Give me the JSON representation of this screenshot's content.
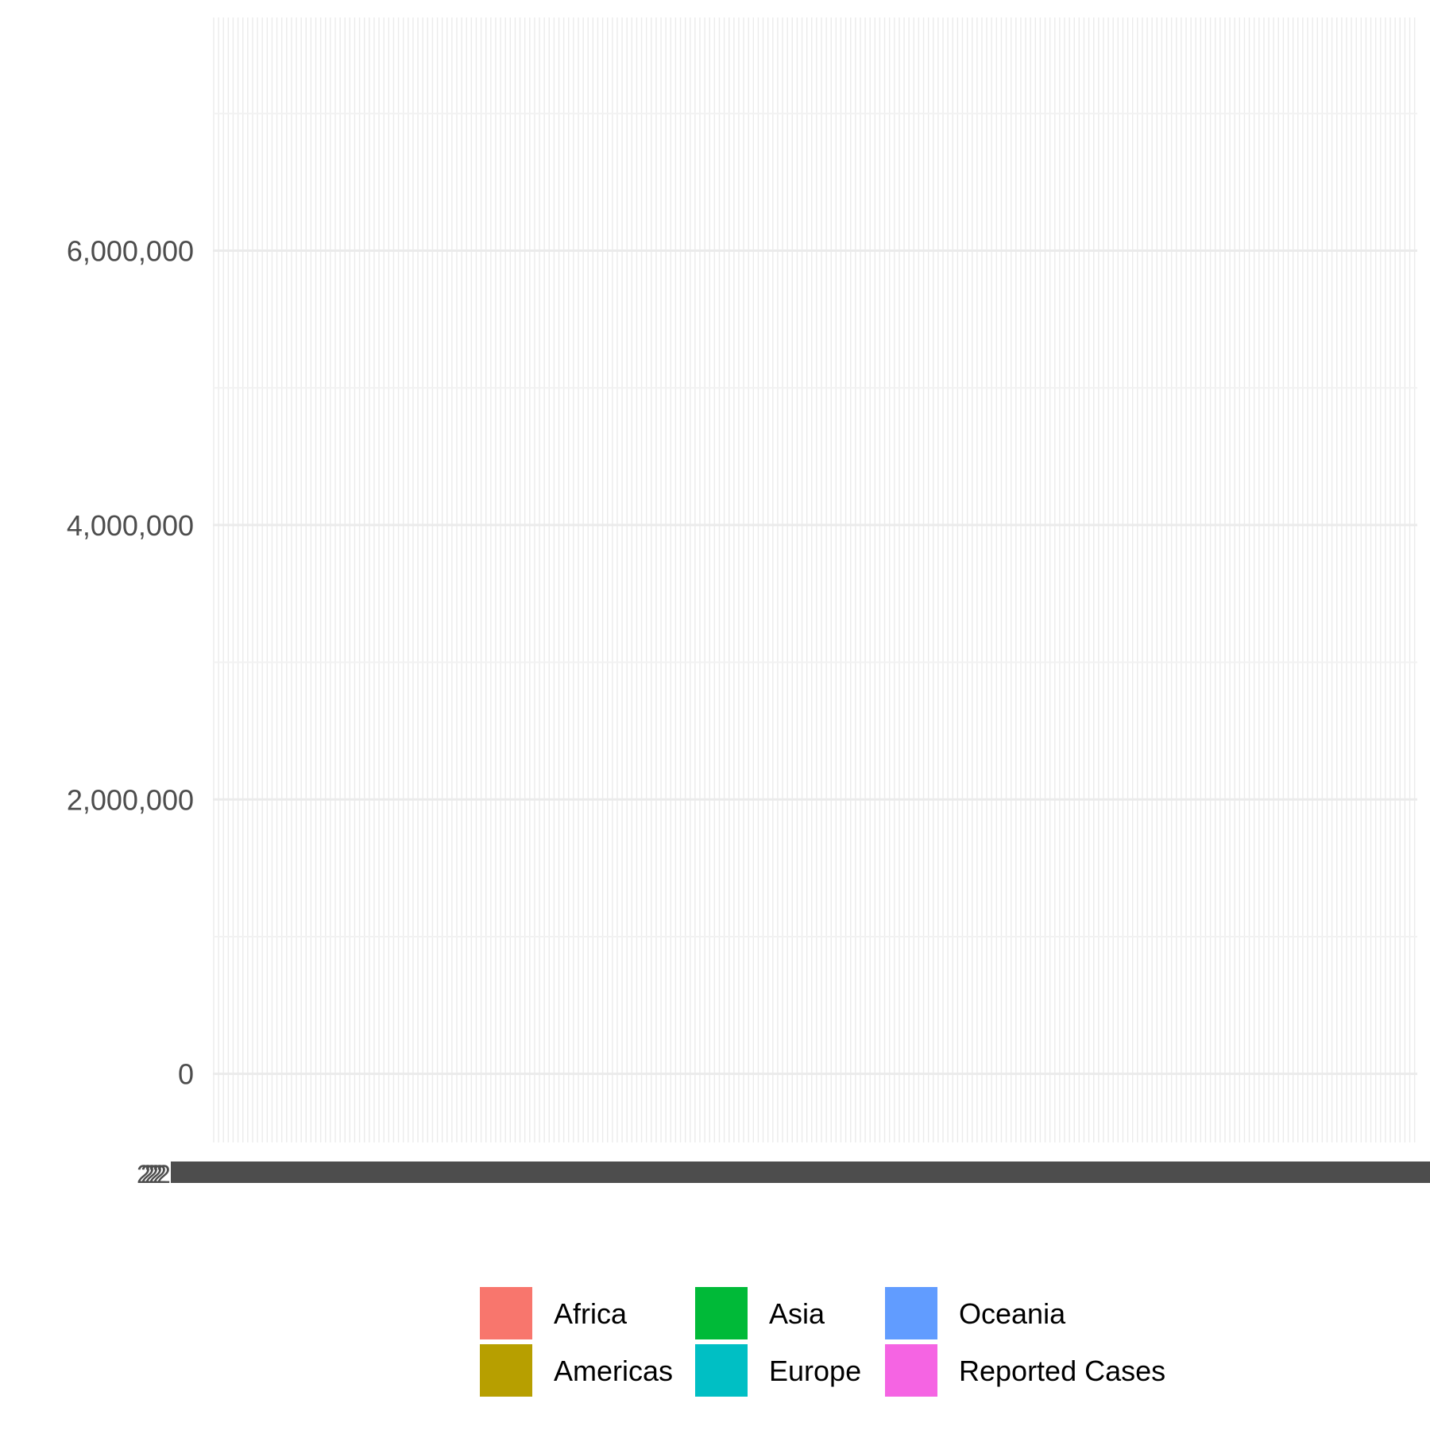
{
  "chart_data": {
    "type": "bar",
    "title": "",
    "xlabel": "",
    "ylabel": "",
    "ylim": [
      -500000,
      7700000
    ],
    "y_ticks": [
      0,
      2000000,
      4000000,
      6000000
    ],
    "y_tick_labels": [
      "0",
      "2,000,000",
      "4,000,000",
      "6,000,000"
    ],
    "y_minor_ticks": [
      1000000,
      3000000,
      5000000,
      7000000
    ],
    "x_tick_label_sample": "2",
    "grid": true,
    "legend": {
      "position": "bottom",
      "entries": [
        {
          "name": "Africa",
          "color": "#F8766D"
        },
        {
          "name": "Americas",
          "color": "#B79F00"
        },
        {
          "name": "Asia",
          "color": "#00BA38"
        },
        {
          "name": "Europe",
          "color": "#00BFC4"
        },
        {
          "name": "Oceania",
          "color": "#619CFF"
        },
        {
          "name": "Reported Cases",
          "color": "#F564E3"
        }
      ]
    },
    "series": []
  },
  "colors": {
    "grid_major": "#ebebeb",
    "grid_minor": "#f2f2f2",
    "x_tick_label_band": "#4d4d4d"
  }
}
